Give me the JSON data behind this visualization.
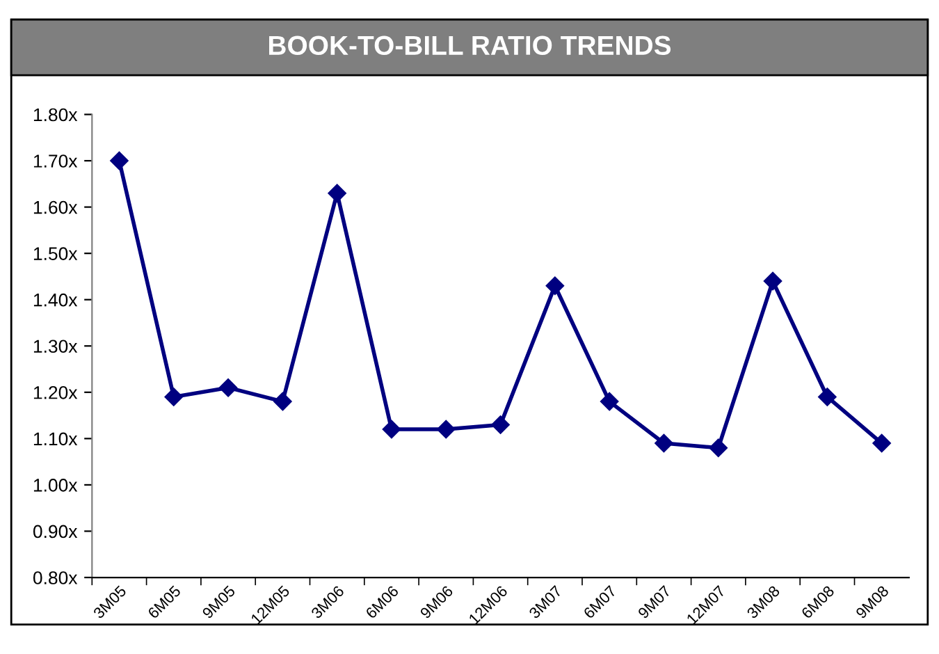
{
  "chart_data": {
    "type": "line",
    "title": "BOOK-TO-BILL RATIO TRENDS",
    "categories": [
      "3M05",
      "6M05",
      "9M05",
      "12M05",
      "3M06",
      "6M06",
      "9M06",
      "12M06",
      "3M07",
      "6M07",
      "9M07",
      "12M07",
      "3M08",
      "6M08",
      "9M08"
    ],
    "series": [
      {
        "color": "#000080",
        "values": [
          1.7,
          1.19,
          1.21,
          1.18,
          1.63,
          1.12,
          1.12,
          1.13,
          1.43,
          1.18,
          1.09,
          1.08,
          1.44,
          1.19,
          1.09
        ]
      }
    ],
    "ylim": [
      0.8,
      1.8
    ],
    "yticks": [
      {
        "value": 0.8,
        "label": "0.80x"
      },
      {
        "value": 0.9,
        "label": "0.90x"
      },
      {
        "value": 1.0,
        "label": "1.00x"
      },
      {
        "value": 1.1,
        "label": "1.10x"
      },
      {
        "value": 1.2,
        "label": "1.20x"
      },
      {
        "value": 1.3,
        "label": "1.30x"
      },
      {
        "value": 1.4,
        "label": "1.40x"
      },
      {
        "value": 1.5,
        "label": "1.50x"
      },
      {
        "value": 1.6,
        "label": "1.60x"
      },
      {
        "value": 1.7,
        "label": "1.70x"
      },
      {
        "value": 1.8,
        "label": "1.80x"
      }
    ],
    "marker": "diamond",
    "line_style": "solid",
    "grid": false,
    "legend": false
  }
}
